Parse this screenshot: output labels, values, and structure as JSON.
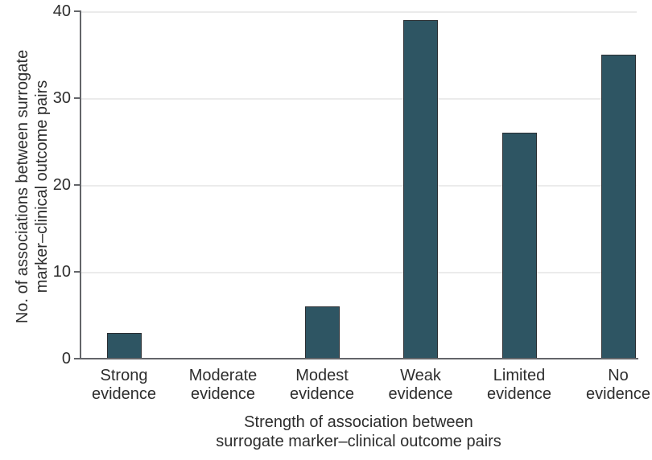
{
  "chart_data": {
    "type": "bar",
    "categories": [
      "Strong evidence",
      "Moderate evidence",
      "Modest evidence",
      "Weak evidence",
      "Limited evidence",
      "No evidence"
    ],
    "values": [
      3,
      0,
      6,
      39,
      26,
      35
    ],
    "title": "",
    "xlabel": "Strength of association between surrogate marker–clinical outcome pairs",
    "xlabel_lines": [
      "Strength of association between",
      "surrogate marker–clinical outcome pairs"
    ],
    "ylabel": "No. of associations between surrogate marker–clinical outcome pairs",
    "ylabel_lines": [
      "No. of associations between surrogate",
      "marker–clinical outcome pairs"
    ],
    "yticks": [
      "0",
      "10",
      "20",
      "30",
      "40"
    ],
    "ylim": [
      0,
      40
    ],
    "grid": "horizontal",
    "legend": "none",
    "colors": {
      "bar_fill": "#2E5563",
      "bar_border": "#2B2F33",
      "gridline": "#EBEBEB",
      "axis": "#636569",
      "text": "#2D2D2D",
      "background": "#FFFFFF"
    }
  }
}
